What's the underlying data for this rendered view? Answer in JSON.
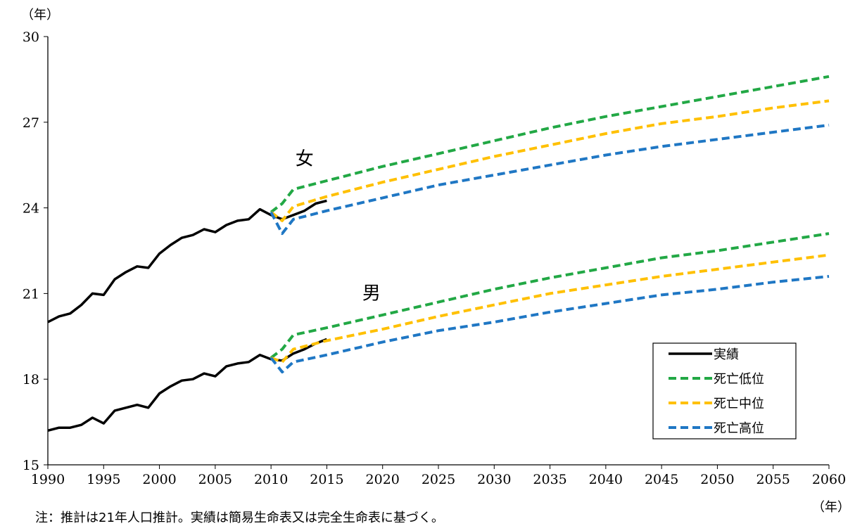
{
  "chart_data": {
    "type": "line",
    "y_unit_label": "（年）",
    "x_unit_label": "（年）",
    "xlim": [
      1990,
      2060
    ],
    "ylim": [
      15,
      30
    ],
    "x_ticks": [
      1990,
      1995,
      2000,
      2005,
      2010,
      2015,
      2020,
      2025,
      2030,
      2035,
      2040,
      2045,
      2050,
      2055,
      2060
    ],
    "y_ticks": [
      15,
      18,
      21,
      24,
      27,
      30
    ],
    "grid": false,
    "legend_position": "bottom-right",
    "annotations": [
      {
        "text": "女",
        "x": 2013,
        "y": 25.5
      },
      {
        "text": "男",
        "x": 2019,
        "y": 20.8
      }
    ],
    "series": [
      {
        "name": "実績",
        "group": "女",
        "color": "#000000",
        "dash": false,
        "x": [
          1990,
          1991,
          1992,
          1993,
          1994,
          1995,
          1996,
          1997,
          1998,
          1999,
          2000,
          2001,
          2002,
          2003,
          2004,
          2005,
          2006,
          2007,
          2008,
          2009,
          2010,
          2011,
          2012,
          2013,
          2014,
          2015
        ],
        "y": [
          20.0,
          20.2,
          20.3,
          20.6,
          21.0,
          20.95,
          21.5,
          21.75,
          21.95,
          21.9,
          22.4,
          22.7,
          22.95,
          23.05,
          23.25,
          23.15,
          23.4,
          23.55,
          23.6,
          23.95,
          23.75,
          23.6,
          23.75,
          23.9,
          24.15,
          24.25
        ]
      },
      {
        "name": "死亡低位",
        "group": "女",
        "color": "#22a845",
        "dash": true,
        "x": [
          2010,
          2011,
          2012,
          2015,
          2020,
          2025,
          2030,
          2035,
          2040,
          2045,
          2050,
          2055,
          2060
        ],
        "y": [
          23.85,
          24.15,
          24.65,
          24.95,
          25.45,
          25.9,
          26.35,
          26.8,
          27.2,
          27.55,
          27.9,
          28.25,
          28.6
        ]
      },
      {
        "name": "死亡中位",
        "group": "女",
        "color": "#ffc000",
        "dash": true,
        "x": [
          2010,
          2011,
          2012,
          2015,
          2020,
          2025,
          2030,
          2035,
          2040,
          2045,
          2050,
          2055,
          2060
        ],
        "y": [
          23.85,
          23.55,
          24.05,
          24.4,
          24.9,
          25.35,
          25.8,
          26.2,
          26.6,
          26.95,
          27.2,
          27.5,
          27.75
        ]
      },
      {
        "name": "死亡高位",
        "group": "女",
        "color": "#1f77c4",
        "dash": true,
        "x": [
          2010,
          2011,
          2012,
          2015,
          2020,
          2025,
          2030,
          2035,
          2040,
          2045,
          2050,
          2055,
          2060
        ],
        "y": [
          23.85,
          23.1,
          23.6,
          23.9,
          24.35,
          24.8,
          25.15,
          25.5,
          25.85,
          26.15,
          26.4,
          26.65,
          26.9
        ]
      },
      {
        "name": "実績",
        "group": "男",
        "color": "#000000",
        "dash": false,
        "x": [
          1990,
          1991,
          1992,
          1993,
          1994,
          1995,
          1996,
          1997,
          1998,
          1999,
          2000,
          2001,
          2002,
          2003,
          2004,
          2005,
          2006,
          2007,
          2008,
          2009,
          2010,
          2011,
          2012,
          2013,
          2014,
          2015
        ],
        "y": [
          16.2,
          16.3,
          16.3,
          16.4,
          16.65,
          16.45,
          16.9,
          17.0,
          17.1,
          17.0,
          17.5,
          17.75,
          17.95,
          18.0,
          18.2,
          18.1,
          18.45,
          18.55,
          18.6,
          18.85,
          18.7,
          18.65,
          18.9,
          19.05,
          19.25,
          19.4
        ]
      },
      {
        "name": "死亡低位",
        "group": "男",
        "color": "#22a845",
        "dash": true,
        "x": [
          2010,
          2011,
          2012,
          2015,
          2020,
          2025,
          2030,
          2035,
          2040,
          2045,
          2050,
          2055,
          2060
        ],
        "y": [
          18.75,
          19.05,
          19.55,
          19.8,
          20.25,
          20.7,
          21.15,
          21.55,
          21.9,
          22.25,
          22.5,
          22.8,
          23.1
        ]
      },
      {
        "name": "死亡中位",
        "group": "男",
        "color": "#ffc000",
        "dash": true,
        "x": [
          2010,
          2011,
          2012,
          2015,
          2020,
          2025,
          2030,
          2035,
          2040,
          2045,
          2050,
          2055,
          2060
        ],
        "y": [
          18.75,
          18.6,
          19.05,
          19.35,
          19.75,
          20.2,
          20.6,
          21.0,
          21.3,
          21.6,
          21.85,
          22.1,
          22.35
        ]
      },
      {
        "name": "死亡高位",
        "group": "男",
        "color": "#1f77c4",
        "dash": true,
        "x": [
          2010,
          2011,
          2012,
          2015,
          2020,
          2025,
          2030,
          2035,
          2040,
          2045,
          2050,
          2055,
          2060
        ],
        "y": [
          18.75,
          18.25,
          18.6,
          18.85,
          19.3,
          19.7,
          20.0,
          20.35,
          20.65,
          20.95,
          21.15,
          21.4,
          21.6
        ]
      }
    ],
    "legend": [
      {
        "label": "実績",
        "color": "#000000",
        "dash": false
      },
      {
        "label": "死亡低位",
        "color": "#22a845",
        "dash": true
      },
      {
        "label": "死亡中位",
        "color": "#ffc000",
        "dash": true
      },
      {
        "label": "死亡高位",
        "color": "#1f77c4",
        "dash": true
      }
    ]
  },
  "note": "注：推計は21年人口推計。実績は簡易生命表又は完全生命表に基づく。"
}
